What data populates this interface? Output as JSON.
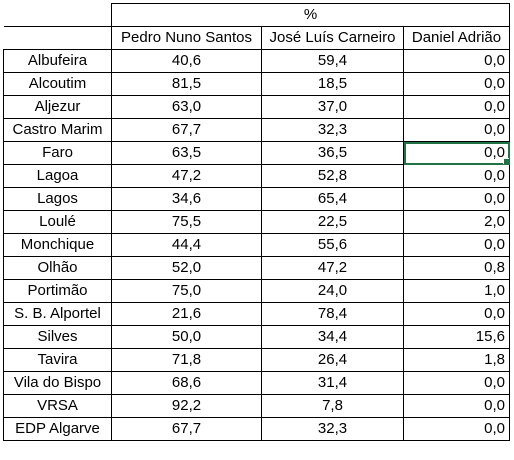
{
  "header": {
    "group_label": "%",
    "columns": [
      "Pedro Nuno Santos",
      "José Luís Carneiro",
      "Daniel Adrião"
    ]
  },
  "rows": [
    {
      "name": "Albufeira",
      "v1": "40,6",
      "v2": "59,4",
      "v3": "0,0"
    },
    {
      "name": "Alcoutim",
      "v1": "81,5",
      "v2": "18,5",
      "v3": "0,0"
    },
    {
      "name": "Aljezur",
      "v1": "63,0",
      "v2": "37,0",
      "v3": "0,0"
    },
    {
      "name": "Castro Marim",
      "v1": "67,7",
      "v2": "32,3",
      "v3": "0,0"
    },
    {
      "name": "Faro",
      "v1": "63,5",
      "v2": "36,5",
      "v3": "0,0"
    },
    {
      "name": "Lagoa",
      "v1": "47,2",
      "v2": "52,8",
      "v3": "0,0"
    },
    {
      "name": "Lagos",
      "v1": "34,6",
      "v2": "65,4",
      "v3": "0,0"
    },
    {
      "name": "Loulé",
      "v1": "75,5",
      "v2": "22,5",
      "v3": "2,0"
    },
    {
      "name": "Monchique",
      "v1": "44,4",
      "v2": "55,6",
      "v3": "0,0"
    },
    {
      "name": "Olhão",
      "v1": "52,0",
      "v2": "47,2",
      "v3": "0,8"
    },
    {
      "name": "Portimão",
      "v1": "75,0",
      "v2": "24,0",
      "v3": "1,0"
    },
    {
      "name": "S. B. Alportel",
      "v1": "21,6",
      "v2": "78,4",
      "v3": "0,0"
    },
    {
      "name": "Silves",
      "v1": "50,0",
      "v2": "34,4",
      "v3": "15,6"
    },
    {
      "name": "Tavira",
      "v1": "71,8",
      "v2": "26,4",
      "v3": "1,8"
    },
    {
      "name": "Vila do Bispo",
      "v1": "68,6",
      "v2": "31,4",
      "v3": "0,0"
    },
    {
      "name": "VRSA",
      "v1": "92,2",
      "v2": "7,8",
      "v3": "0,0"
    },
    {
      "name": "EDP Algarve",
      "v1": "67,7",
      "v2": "32,3",
      "v3": "0,0"
    }
  ],
  "selection": {
    "row_index": 4,
    "column": "v3",
    "color": "#217346"
  }
}
